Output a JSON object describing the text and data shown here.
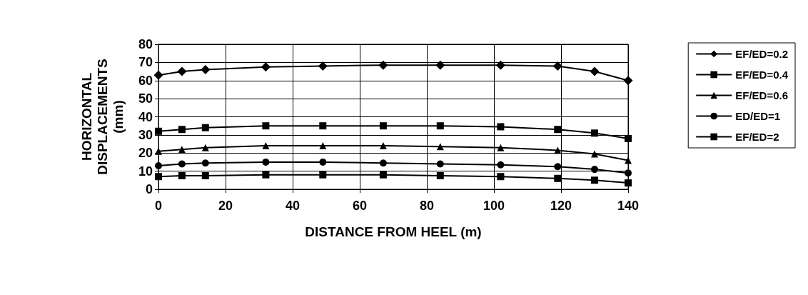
{
  "chart_data": {
    "type": "line",
    "xlabel": "DISTANCE FROM HEEL (m)",
    "ylabel": "HORIZONTAL\nDISPLACEMENTS\n(mm)",
    "x": [
      0,
      7,
      14,
      32,
      49,
      67,
      84,
      102,
      119,
      130,
      140
    ],
    "series": [
      {
        "name": "EF/ED=0.2",
        "color": "#000000",
        "marker": "diamond",
        "values": [
          63,
          65,
          66,
          67.5,
          68,
          68.5,
          68.5,
          68.5,
          68,
          65,
          60
        ]
      },
      {
        "name": "EF/ED=0.4",
        "color": "#000000",
        "marker": "square",
        "values": [
          32,
          33,
          34,
          35,
          35,
          35,
          35,
          34.5,
          33,
          31,
          28
        ]
      },
      {
        "name": "EF/ED=0.6",
        "color": "#000000",
        "marker": "triangle",
        "values": [
          21,
          22,
          23,
          24,
          24,
          24,
          23.5,
          23,
          21.5,
          19.5,
          16
        ]
      },
      {
        "name": "ED/ED=1",
        "color": "#000000",
        "marker": "circle",
        "values": [
          13,
          14,
          14.5,
          15,
          15,
          14.5,
          14,
          13.5,
          12.5,
          11,
          9
        ]
      },
      {
        "name": "EF/ED=2",
        "color": "#000000",
        "marker": "square",
        "values": [
          7,
          7.5,
          7.5,
          8,
          8,
          8,
          7.5,
          7,
          6,
          5,
          3.5
        ]
      }
    ],
    "xlim": [
      0,
      140
    ],
    "xticks": [
      0,
      20,
      40,
      60,
      80,
      100,
      120,
      140
    ],
    "ylim": [
      0,
      80
    ],
    "yticks": [
      0,
      10,
      20,
      30,
      40,
      50,
      60,
      70,
      80
    ],
    "grid": true,
    "legend": "right",
    "line_style": "solid"
  }
}
